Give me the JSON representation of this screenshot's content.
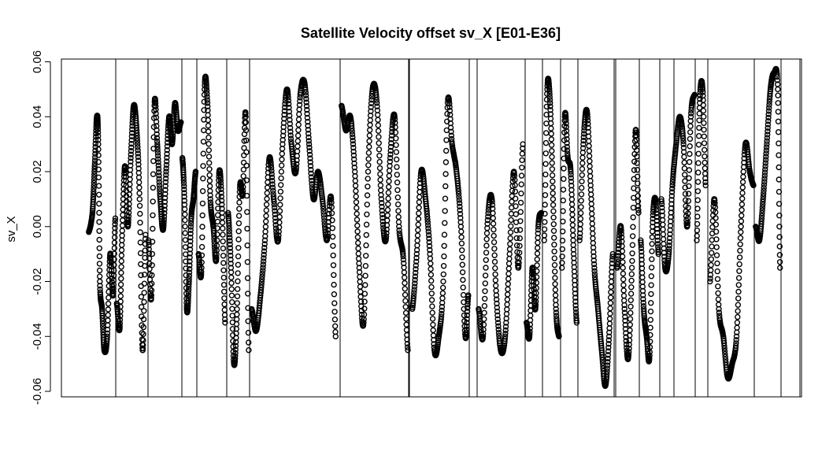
{
  "chart_data": {
    "type": "scatter",
    "title": "Satellite Velocity offset sv_X [E01-E36]",
    "xlabel": "",
    "ylabel": "sv_X",
    "ylim": [
      -0.062,
      0.061
    ],
    "y_ticks": [
      -0.06,
      -0.04,
      -0.02,
      0.0,
      0.02,
      0.04,
      0.06
    ],
    "y_tick_labels": [
      "-0.06",
      "-0.04",
      "-0.02",
      "0.00",
      "0.02",
      "0.04",
      "0.06"
    ],
    "x_axis_shown": false,
    "grid": false,
    "legend": "none",
    "marker": "open-circle",
    "color": "#000000",
    "x_range": [
      0,
      1
    ],
    "separators_x": [
      0.072,
      0.115,
      0.161,
      0.182,
      0.222,
      0.253,
      0.376,
      0.469,
      0.47,
      0.551,
      0.562,
      0.627,
      0.627,
      0.651,
      0.675,
      0.699,
      0.748,
      0.75,
      0.782,
      0.81,
      0.829,
      0.858,
      0.875,
      0.938,
      0.974,
      1.0
    ],
    "segments": [
      {
        "x0": 0.035,
        "x1": 0.072,
        "points": [
          [
            0.035,
            -0.002
          ],
          [
            0.04,
            0.005
          ],
          [
            0.043,
            0.022
          ],
          [
            0.046,
            0.04
          ],
          [
            0.048,
            0.03
          ],
          [
            0.05,
            -0.02
          ],
          [
            0.053,
            -0.03
          ],
          [
            0.056,
            -0.045
          ],
          [
            0.06,
            -0.04
          ],
          [
            0.064,
            -0.01
          ],
          [
            0.068,
            -0.025
          ],
          [
            0.071,
            0.003
          ]
        ]
      },
      {
        "x0": 0.072,
        "x1": 0.115,
        "points": [
          [
            0.073,
            -0.028
          ],
          [
            0.077,
            -0.037
          ],
          [
            0.08,
            -0.005
          ],
          [
            0.084,
            0.022
          ],
          [
            0.088,
            0.0
          ],
          [
            0.092,
            0.025
          ],
          [
            0.096,
            0.044
          ],
          [
            0.1,
            0.035
          ],
          [
            0.104,
            0.01
          ],
          [
            0.108,
            -0.045
          ],
          [
            0.112,
            -0.003
          ]
        ]
      },
      {
        "x0": 0.115,
        "x1": 0.161,
        "points": [
          [
            0.116,
            -0.005
          ],
          [
            0.12,
            -0.025
          ],
          [
            0.124,
            0.044
          ],
          [
            0.128,
            0.03
          ],
          [
            0.132,
            0.01
          ],
          [
            0.136,
            -0.001
          ],
          [
            0.14,
            0.02
          ],
          [
            0.144,
            0.04
          ],
          [
            0.148,
            0.03
          ],
          [
            0.152,
            0.045
          ],
          [
            0.156,
            0.035
          ],
          [
            0.16,
            0.038
          ]
        ]
      },
      {
        "x0": 0.161,
        "x1": 0.182,
        "points": [
          [
            0.162,
            0.025
          ],
          [
            0.165,
            0.008
          ],
          [
            0.168,
            -0.03
          ],
          [
            0.171,
            -0.02
          ],
          [
            0.174,
            0.003
          ],
          [
            0.177,
            0.01
          ],
          [
            0.18,
            0.02
          ]
        ]
      },
      {
        "x0": 0.182,
        "x1": 0.222,
        "points": [
          [
            0.184,
            -0.01
          ],
          [
            0.188,
            -0.015
          ],
          [
            0.192,
            0.05
          ],
          [
            0.196,
            0.045
          ],
          [
            0.2,
            0.01
          ],
          [
            0.204,
            0.0
          ],
          [
            0.208,
            -0.012
          ],
          [
            0.212,
            0.02
          ],
          [
            0.216,
            0.005
          ],
          [
            0.22,
            -0.035
          ]
        ]
      },
      {
        "x0": 0.222,
        "x1": 0.253,
        "points": [
          [
            0.224,
            0.005
          ],
          [
            0.228,
            -0.015
          ],
          [
            0.232,
            -0.05
          ],
          [
            0.236,
            -0.032
          ],
          [
            0.24,
            0.014
          ],
          [
            0.244,
            0.012
          ],
          [
            0.248,
            0.04
          ],
          [
            0.252,
            -0.045
          ]
        ]
      },
      {
        "x0": 0.253,
        "x1": 0.376,
        "points": [
          [
            0.256,
            -0.03
          ],
          [
            0.262,
            -0.038
          ],
          [
            0.268,
            -0.025
          ],
          [
            0.274,
            -0.005
          ],
          [
            0.28,
            0.025
          ],
          [
            0.286,
            0.01
          ],
          [
            0.292,
            -0.005
          ],
          [
            0.298,
            0.03
          ],
          [
            0.304,
            0.05
          ],
          [
            0.31,
            0.03
          ],
          [
            0.316,
            0.02
          ],
          [
            0.322,
            0.048
          ],
          [
            0.328,
            0.052
          ],
          [
            0.334,
            0.03
          ],
          [
            0.34,
            0.01
          ],
          [
            0.346,
            0.02
          ],
          [
            0.352,
            0.01
          ],
          [
            0.358,
            -0.005
          ],
          [
            0.364,
            0.01
          ],
          [
            0.37,
            -0.04
          ]
        ]
      },
      {
        "x0": 0.376,
        "x1": 0.469,
        "points": [
          [
            0.378,
            0.044
          ],
          [
            0.384,
            0.035
          ],
          [
            0.39,
            0.04
          ],
          [
            0.396,
            0.02
          ],
          [
            0.402,
            -0.015
          ],
          [
            0.408,
            -0.035
          ],
          [
            0.414,
            0.02
          ],
          [
            0.42,
            0.05
          ],
          [
            0.426,
            0.045
          ],
          [
            0.432,
            0.01
          ],
          [
            0.438,
            -0.005
          ],
          [
            0.444,
            0.025
          ],
          [
            0.45,
            0.04
          ],
          [
            0.456,
            0.0
          ],
          [
            0.462,
            -0.012
          ],
          [
            0.468,
            -0.045
          ]
        ]
      },
      {
        "x0": 0.47,
        "x1": 0.551,
        "points": [
          [
            0.474,
            -0.03
          ],
          [
            0.48,
            -0.01
          ],
          [
            0.486,
            0.02
          ],
          [
            0.492,
            0.01
          ],
          [
            0.498,
            -0.01
          ],
          [
            0.504,
            -0.045
          ],
          [
            0.51,
            -0.04
          ],
          [
            0.516,
            -0.02
          ],
          [
            0.522,
            0.045
          ],
          [
            0.528,
            0.03
          ],
          [
            0.534,
            0.02
          ],
          [
            0.54,
            0.0
          ],
          [
            0.546,
            -0.04
          ],
          [
            0.55,
            -0.025
          ]
        ]
      },
      {
        "x0": 0.562,
        "x1": 0.627,
        "points": [
          [
            0.564,
            -0.03
          ],
          [
            0.57,
            -0.04
          ],
          [
            0.576,
            0.001
          ],
          [
            0.582,
            0.01
          ],
          [
            0.588,
            -0.025
          ],
          [
            0.594,
            -0.045
          ],
          [
            0.6,
            -0.04
          ],
          [
            0.606,
            -0.01
          ],
          [
            0.612,
            0.02
          ],
          [
            0.618,
            -0.015
          ],
          [
            0.624,
            0.03
          ]
        ]
      },
      {
        "x0": 0.627,
        "x1": 0.651,
        "points": [
          [
            0.629,
            -0.035
          ],
          [
            0.633,
            -0.04
          ],
          [
            0.637,
            -0.015
          ],
          [
            0.641,
            -0.03
          ],
          [
            0.645,
            0.0
          ],
          [
            0.649,
            0.005
          ]
        ]
      },
      {
        "x0": 0.651,
        "x1": 0.675,
        "points": [
          [
            0.653,
            -0.005
          ],
          [
            0.657,
            0.05
          ],
          [
            0.661,
            0.045
          ],
          [
            0.665,
            0.01
          ],
          [
            0.669,
            -0.03
          ],
          [
            0.673,
            -0.04
          ]
        ]
      },
      {
        "x0": 0.675,
        "x1": 0.699,
        "points": [
          [
            0.677,
            -0.015
          ],
          [
            0.681,
            0.04
          ],
          [
            0.685,
            0.025
          ],
          [
            0.689,
            0.02
          ],
          [
            0.693,
            -0.01
          ],
          [
            0.697,
            -0.035
          ]
        ]
      },
      {
        "x0": 0.699,
        "x1": 0.748,
        "points": [
          [
            0.701,
            -0.005
          ],
          [
            0.706,
            0.03
          ],
          [
            0.711,
            0.042
          ],
          [
            0.716,
            0.015
          ],
          [
            0.721,
            -0.015
          ],
          [
            0.726,
            -0.03
          ],
          [
            0.731,
            -0.045
          ],
          [
            0.736,
            -0.058
          ],
          [
            0.741,
            -0.04
          ],
          [
            0.746,
            -0.01
          ]
        ]
      },
      {
        "x0": 0.75,
        "x1": 0.782,
        "points": [
          [
            0.752,
            -0.015
          ],
          [
            0.757,
            0.0
          ],
          [
            0.762,
            -0.03
          ],
          [
            0.767,
            -0.048
          ],
          [
            0.772,
            -0.015
          ],
          [
            0.777,
            0.035
          ],
          [
            0.781,
            0.005
          ]
        ]
      },
      {
        "x0": 0.782,
        "x1": 0.81,
        "points": [
          [
            0.784,
            -0.005
          ],
          [
            0.788,
            -0.03
          ],
          [
            0.792,
            -0.04
          ],
          [
            0.796,
            -0.047
          ],
          [
            0.8,
            0.0
          ],
          [
            0.804,
            0.01
          ],
          [
            0.808,
            -0.01
          ]
        ]
      },
      {
        "x0": 0.81,
        "x1": 0.858,
        "points": [
          [
            0.812,
            0.01
          ],
          [
            0.817,
            -0.015
          ],
          [
            0.822,
            -0.01
          ],
          [
            0.827,
            0.015
          ],
          [
            0.832,
            0.03
          ],
          [
            0.837,
            0.04
          ],
          [
            0.842,
            0.03
          ],
          [
            0.847,
            0.0
          ],
          [
            0.852,
            0.04
          ],
          [
            0.857,
            0.048
          ]
        ]
      },
      {
        "x0": 0.858,
        "x1": 0.875,
        "points": [
          [
            0.86,
            -0.005
          ],
          [
            0.864,
            0.045
          ],
          [
            0.868,
            0.05
          ],
          [
            0.872,
            0.015
          ]
        ]
      },
      {
        "x0": 0.875,
        "x1": 0.938,
        "points": [
          [
            0.878,
            -0.02
          ],
          [
            0.884,
            0.01
          ],
          [
            0.89,
            -0.03
          ],
          [
            0.896,
            -0.04
          ],
          [
            0.902,
            -0.055
          ],
          [
            0.908,
            -0.05
          ],
          [
            0.914,
            -0.04
          ],
          [
            0.92,
            0.0
          ],
          [
            0.926,
            0.03
          ],
          [
            0.932,
            0.02
          ],
          [
            0.937,
            0.015
          ]
        ]
      },
      {
        "x0": 0.938,
        "x1": 0.974,
        "points": [
          [
            0.94,
            0.0
          ],
          [
            0.945,
            -0.005
          ],
          [
            0.95,
            0.01
          ],
          [
            0.955,
            0.03
          ],
          [
            0.96,
            0.05
          ],
          [
            0.965,
            0.056
          ],
          [
            0.97,
            0.05
          ],
          [
            0.973,
            -0.015
          ]
        ]
      }
    ]
  }
}
